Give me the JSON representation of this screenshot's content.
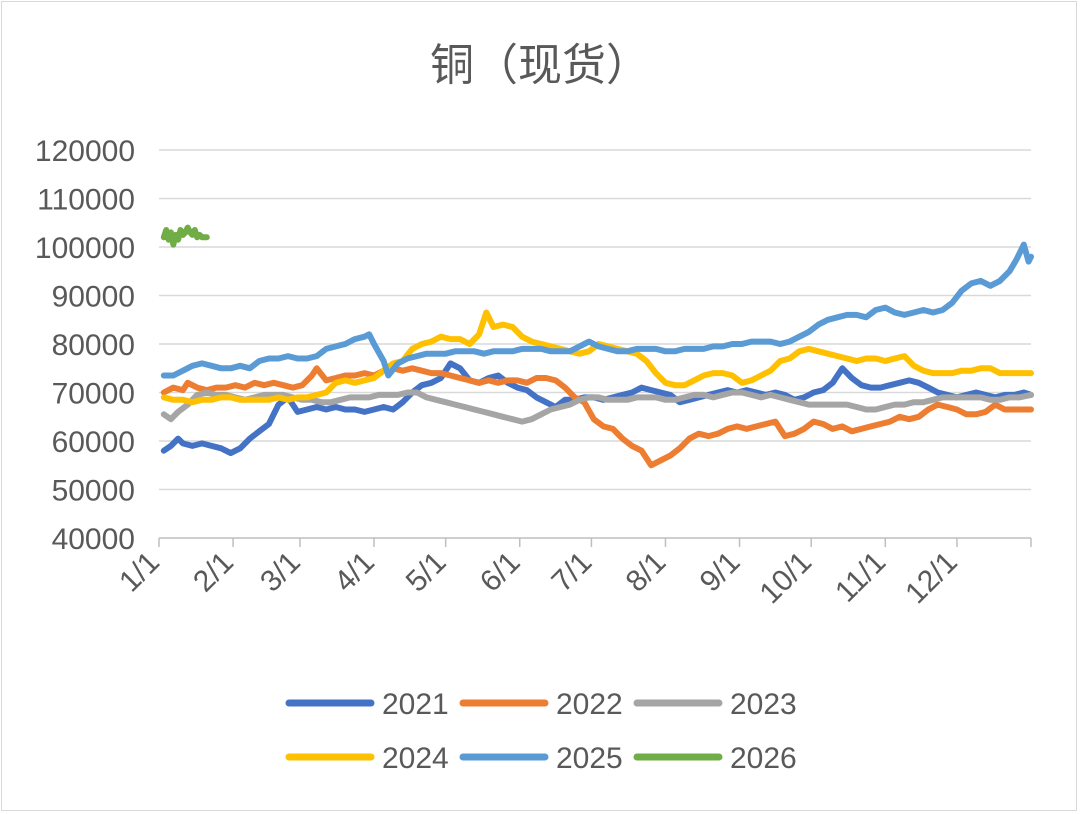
{
  "chart_data": {
    "type": "line",
    "title": "铜（现货）",
    "xlabel": "",
    "ylabel": "",
    "ylim": [
      40000,
      120000
    ],
    "yticks": [
      120000,
      110000,
      100000,
      90000,
      80000,
      70000,
      60000,
      50000,
      40000
    ],
    "xticks": [
      {
        "label": "1/1",
        "day": 0
      },
      {
        "label": "2/1",
        "day": 31
      },
      {
        "label": "3/1",
        "day": 59
      },
      {
        "label": "4/1",
        "day": 90
      },
      {
        "label": "5/1",
        "day": 120
      },
      {
        "label": "6/1",
        "day": 151
      },
      {
        "label": "7/1",
        "day": 181
      },
      {
        "label": "8/1",
        "day": 212
      },
      {
        "label": "9/1",
        "day": 243
      },
      {
        "label": "10/1",
        "day": 273
      },
      {
        "label": "11/1",
        "day": 304
      },
      {
        "label": "12/1",
        "day": 334
      }
    ],
    "xlim": [
      0,
      365
    ],
    "legend": "bottom",
    "series": [
      {
        "name": "2021",
        "color": "#4472C4",
        "x": [
          2,
          5,
          8,
          10,
          14,
          18,
          22,
          26,
          30,
          34,
          38,
          42,
          46,
          50,
          54,
          58,
          62,
          66,
          70,
          74,
          78,
          82,
          86,
          90,
          94,
          98,
          102,
          106,
          110,
          114,
          118,
          122,
          126,
          130,
          134,
          138,
          142,
          146,
          150,
          154,
          158,
          162,
          166,
          170,
          174,
          178,
          182,
          186,
          190,
          194,
          198,
          202,
          206,
          210,
          214,
          218,
          222,
          226,
          230,
          234,
          238,
          242,
          246,
          250,
          254,
          258,
          262,
          266,
          270,
          274,
          278,
          282,
          286,
          290,
          294,
          298,
          302,
          306,
          310,
          314,
          318,
          322,
          326,
          330,
          334,
          338,
          342,
          346,
          350,
          354,
          358,
          362,
          365
        ],
        "values": [
          58000,
          59000,
          60500,
          59500,
          59000,
          59500,
          59000,
          58500,
          57500,
          58500,
          60500,
          62000,
          63500,
          67500,
          69000,
          66000,
          66500,
          67000,
          66500,
          67000,
          66500,
          66500,
          66000,
          66500,
          67000,
          66500,
          68000,
          70000,
          71500,
          72000,
          73000,
          76000,
          75000,
          72500,
          72000,
          73000,
          73500,
          72000,
          71000,
          70500,
          69000,
          68000,
          67000,
          68500,
          68500,
          69000,
          69000,
          68500,
          69000,
          69500,
          70000,
          71000,
          70500,
          70000,
          69500,
          68000,
          68500,
          69000,
          69500,
          70000,
          70500,
          70000,
          70500,
          70000,
          69500,
          70000,
          69500,
          68500,
          69000,
          70000,
          70500,
          72000,
          75000,
          73000,
          71500,
          71000,
          71000,
          71500,
          72000,
          72500,
          72000,
          71000,
          70000,
          69500,
          69000,
          69500,
          70000,
          69500,
          69000,
          69500,
          69500,
          70000,
          69500
        ]
      },
      {
        "name": "2022",
        "color": "#ED7D31",
        "x": [
          2,
          6,
          10,
          12,
          16,
          20,
          24,
          28,
          32,
          36,
          40,
          44,
          48,
          52,
          56,
          60,
          64,
          66,
          70,
          74,
          78,
          82,
          86,
          90,
          94,
          98,
          102,
          106,
          110,
          114,
          118,
          122,
          126,
          130,
          134,
          138,
          142,
          146,
          150,
          154,
          158,
          162,
          166,
          170,
          174,
          178,
          182,
          186,
          190,
          194,
          198,
          202,
          206,
          210,
          214,
          218,
          222,
          226,
          230,
          234,
          238,
          242,
          246,
          250,
          254,
          258,
          262,
          266,
          270,
          274,
          278,
          282,
          286,
          290,
          294,
          298,
          302,
          306,
          310,
          314,
          318,
          322,
          326,
          330,
          334,
          338,
          342,
          346,
          350,
          354,
          358,
          362,
          365
        ],
        "values": [
          70000,
          71000,
          70500,
          72000,
          71000,
          70500,
          71000,
          71000,
          71500,
          71000,
          72000,
          71500,
          72000,
          71500,
          71000,
          71500,
          73500,
          75000,
          72500,
          73000,
          73500,
          73500,
          74000,
          73500,
          74500,
          75000,
          74500,
          75000,
          74500,
          74000,
          74000,
          73500,
          73000,
          72500,
          72000,
          72500,
          72000,
          72500,
          72500,
          72000,
          73000,
          73000,
          72500,
          71000,
          69000,
          68000,
          64500,
          63000,
          62500,
          60500,
          59000,
          58000,
          55000,
          56000,
          57000,
          58500,
          60500,
          61500,
          61000,
          61500,
          62500,
          63000,
          62500,
          63000,
          63500,
          64000,
          61000,
          61500,
          62500,
          64000,
          63500,
          62500,
          63000,
          62000,
          62500,
          63000,
          63500,
          64000,
          65000,
          64500,
          65000,
          66500,
          67500,
          67000,
          66500,
          65500,
          65500,
          66000,
          67500,
          66500,
          66500,
          66500,
          66500
        ]
      },
      {
        "name": "2023",
        "color": "#A5A5A5",
        "x": [
          2,
          5,
          8,
          12,
          16,
          20,
          24,
          28,
          32,
          36,
          40,
          44,
          48,
          52,
          56,
          60,
          64,
          68,
          72,
          76,
          80,
          84,
          88,
          92,
          96,
          100,
          104,
          108,
          112,
          116,
          120,
          124,
          128,
          132,
          136,
          140,
          144,
          148,
          152,
          156,
          160,
          164,
          168,
          172,
          176,
          180,
          184,
          188,
          192,
          196,
          200,
          204,
          208,
          212,
          216,
          220,
          224,
          228,
          232,
          236,
          240,
          244,
          248,
          252,
          256,
          260,
          264,
          268,
          272,
          276,
          280,
          284,
          288,
          292,
          296,
          300,
          304,
          308,
          312,
          316,
          320,
          324,
          328,
          332,
          336,
          340,
          344,
          348,
          352,
          356,
          360,
          365
        ],
        "values": [
          65500,
          64500,
          66000,
          67500,
          69500,
          70000,
          69500,
          69500,
          69000,
          68500,
          69000,
          69500,
          69500,
          69500,
          69000,
          68500,
          68500,
          68000,
          68000,
          68500,
          69000,
          69000,
          69000,
          69500,
          69500,
          69500,
          70000,
          70000,
          69000,
          68500,
          68000,
          67500,
          67000,
          66500,
          66000,
          65500,
          65000,
          64500,
          64000,
          64500,
          65500,
          66500,
          67000,
          67500,
          68500,
          69000,
          69000,
          68500,
          68500,
          68500,
          69000,
          69000,
          69000,
          68500,
          68500,
          69000,
          69500,
          69500,
          69000,
          69500,
          70000,
          70000,
          69500,
          69000,
          69500,
          69000,
          68500,
          68000,
          67500,
          67500,
          67500,
          67500,
          67500,
          67000,
          66500,
          66500,
          67000,
          67500,
          67500,
          68000,
          68000,
          68500,
          69000,
          69000,
          69000,
          69000,
          69000,
          68500,
          68500,
          69000,
          69000,
          69500
        ]
      },
      {
        "name": "2024",
        "color": "#FFC000",
        "x": [
          2,
          6,
          10,
          14,
          18,
          22,
          26,
          30,
          34,
          38,
          42,
          46,
          50,
          54,
          58,
          62,
          66,
          70,
          74,
          78,
          82,
          86,
          90,
          94,
          98,
          102,
          106,
          110,
          114,
          118,
          122,
          126,
          130,
          134,
          137,
          140,
          144,
          148,
          152,
          156,
          160,
          164,
          168,
          172,
          176,
          180,
          184,
          188,
          192,
          196,
          200,
          204,
          208,
          212,
          216,
          220,
          224,
          228,
          232,
          236,
          240,
          244,
          248,
          252,
          256,
          260,
          264,
          268,
          272,
          276,
          280,
          284,
          288,
          292,
          296,
          300,
          304,
          308,
          312,
          316,
          320,
          324,
          328,
          332,
          336,
          340,
          344,
          348,
          352,
          356,
          360,
          365
        ],
        "values": [
          69000,
          68500,
          68500,
          68000,
          68500,
          68500,
          69000,
          69000,
          68500,
          68500,
          68500,
          68500,
          69000,
          68500,
          69000,
          69000,
          69500,
          70000,
          72000,
          72500,
          72000,
          72500,
          73000,
          74500,
          76000,
          76500,
          79000,
          80000,
          80500,
          81500,
          81000,
          81000,
          80000,
          82000,
          86500,
          83500,
          84000,
          83500,
          81500,
          80500,
          80000,
          79500,
          79000,
          78500,
          78000,
          78500,
          80000,
          79500,
          79000,
          78500,
          78000,
          76500,
          74000,
          72000,
          71500,
          71500,
          72500,
          73500,
          74000,
          74000,
          73500,
          72000,
          72500,
          73500,
          74500,
          76500,
          77000,
          78500,
          79000,
          78500,
          78000,
          77500,
          77000,
          76500,
          77000,
          77000,
          76500,
          77000,
          77500,
          75500,
          74500,
          74000,
          74000,
          74000,
          74500,
          74500,
          75000,
          75000,
          74000,
          74000,
          74000,
          74000
        ]
      },
      {
        "name": "2025",
        "color": "#5B9BD5",
        "x": [
          2,
          6,
          10,
          14,
          18,
          22,
          26,
          30,
          34,
          38,
          42,
          46,
          50,
          54,
          58,
          62,
          66,
          70,
          74,
          78,
          82,
          86,
          88,
          90,
          94,
          96,
          100,
          104,
          108,
          112,
          116,
          120,
          124,
          128,
          132,
          136,
          140,
          144,
          148,
          152,
          156,
          160,
          164,
          168,
          172,
          176,
          180,
          184,
          188,
          192,
          196,
          200,
          204,
          208,
          212,
          216,
          220,
          224,
          228,
          232,
          236,
          240,
          244,
          248,
          252,
          256,
          260,
          264,
          268,
          272,
          276,
          280,
          284,
          288,
          292,
          296,
          300,
          304,
          308,
          312,
          316,
          320,
          324,
          328,
          332,
          336,
          340,
          344,
          348,
          352,
          356,
          359,
          362,
          364,
          365
        ],
        "values": [
          73500,
          73500,
          74500,
          75500,
          76000,
          75500,
          75000,
          75000,
          75500,
          75000,
          76500,
          77000,
          77000,
          77500,
          77000,
          77000,
          77500,
          79000,
          79500,
          80000,
          81000,
          81500,
          82000,
          80000,
          76500,
          73500,
          76000,
          77000,
          77500,
          78000,
          78000,
          78000,
          78500,
          78500,
          78500,
          78000,
          78500,
          78500,
          78500,
          79000,
          79000,
          79000,
          78500,
          78500,
          78500,
          79500,
          80500,
          79500,
          79000,
          78500,
          78500,
          79000,
          79000,
          79000,
          78500,
          78500,
          79000,
          79000,
          79000,
          79500,
          79500,
          80000,
          80000,
          80500,
          80500,
          80500,
          80000,
          80500,
          81500,
          82500,
          84000,
          85000,
          85500,
          86000,
          86000,
          85500,
          87000,
          87500,
          86500,
          86000,
          86500,
          87000,
          86500,
          87000,
          88500,
          91000,
          92500,
          93000,
          92000,
          93000,
          95000,
          97500,
          100500,
          97000,
          98000
        ]
      },
      {
        "name": "2026",
        "color": "#70AD47",
        "x": [
          2,
          3,
          4,
          5,
          6,
          7,
          8,
          9,
          10,
          11,
          12,
          13,
          14,
          15,
          16,
          17,
          18,
          19,
          20
        ],
        "values": [
          102000,
          103500,
          101500,
          103000,
          100500,
          102500,
          101500,
          103500,
          102500,
          103000,
          104000,
          103000,
          102500,
          103500,
          102000,
          102500,
          102000,
          102000,
          102000
        ]
      }
    ]
  }
}
